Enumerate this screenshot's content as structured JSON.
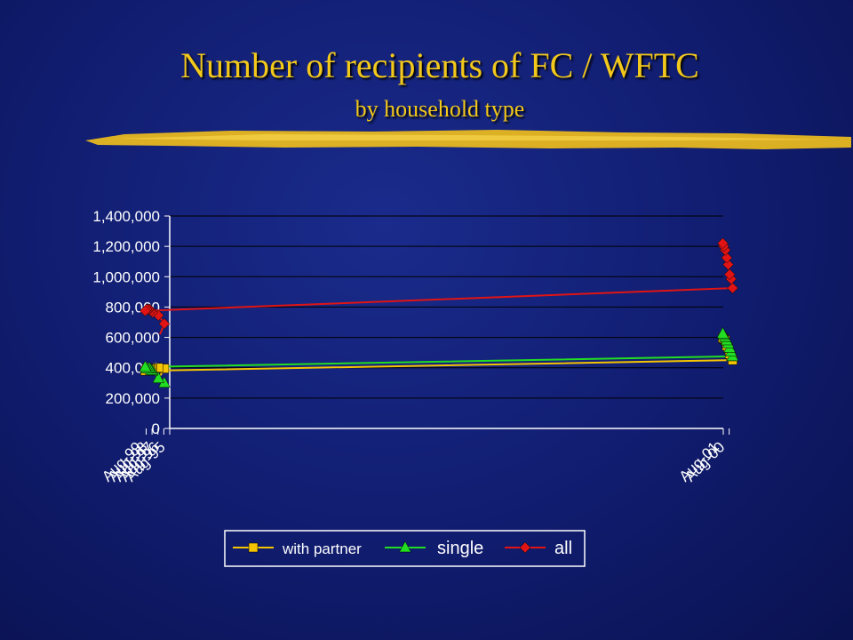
{
  "slide": {
    "title": "Number of recipients of FC / WFTC",
    "subtitle": "by household type"
  },
  "colors": {
    "background": "#101c6e",
    "title": "#f2c81c",
    "brush_stroke": "#e8b820",
    "axis_text": "#ffffff",
    "legend_box": "#ffffff"
  },
  "chart_data": {
    "type": "line",
    "x_dates": [
      "Aug-95",
      "Jul-96",
      "Jul-97",
      "Jul-98",
      "Oct-98",
      "Jan-99",
      "Apr-99",
      "Jul-99",
      "Oct-99",
      "Jan-00",
      "Apr-00",
      "Jul-00",
      "Oct-00",
      "Jan-01",
      "Apr-01",
      "Jul-01",
      "Sep-01"
    ],
    "x_ticks": [
      "Aug-95",
      "Aug-96",
      "Aug-97",
      "Aug-98",
      "Aug-99",
      "Aug-00",
      "Aug-01"
    ],
    "y_ticks": [
      "0",
      "200,000",
      "400,000",
      "600,000",
      "800,000",
      "1,000,000",
      "1,200,000",
      "1,400,000"
    ],
    "ylim": [
      0,
      1400000
    ],
    "grid": "horizontal",
    "legend_position": "bottom",
    "series": [
      {
        "name": "with partner",
        "color": "#f5c400",
        "marker": "square",
        "values": [
          345000,
          395000,
          400000,
          395000,
          395000,
          395000,
          395000,
          395000,
          380000,
          450000,
          475000,
          490000,
          530000,
          545000,
          580000,
          590000,
          595000
        ],
        "marked": [
          false,
          true,
          true,
          true,
          true,
          true,
          true,
          true,
          true,
          true,
          true,
          true,
          true,
          true,
          true,
          true,
          true
        ]
      },
      {
        "name": "single",
        "color": "#22dd22",
        "marker": "triangle",
        "values": [
          275000,
          300000,
          330000,
          380000,
          385000,
          395000,
          395000,
          395000,
          405000,
          475000,
          505000,
          530000,
          560000,
          580000,
          600000,
          615000,
          625000
        ],
        "marked": [
          false,
          true,
          true,
          true,
          true,
          true,
          true,
          true,
          true,
          true,
          true,
          true,
          true,
          true,
          true,
          true,
          true
        ]
      },
      {
        "name": "all",
        "color": "#e01414",
        "marker": "diamond",
        "values": [
          620000,
          690000,
          745000,
          765000,
          775000,
          785000,
          785000,
          785000,
          775000,
          925000,
          985000,
          1015000,
          1080000,
          1125000,
          1175000,
          1200000,
          1220000
        ],
        "marked": [
          false,
          true,
          true,
          true,
          true,
          true,
          true,
          true,
          true,
          true,
          true,
          true,
          true,
          true,
          true,
          true,
          true
        ]
      }
    ]
  }
}
